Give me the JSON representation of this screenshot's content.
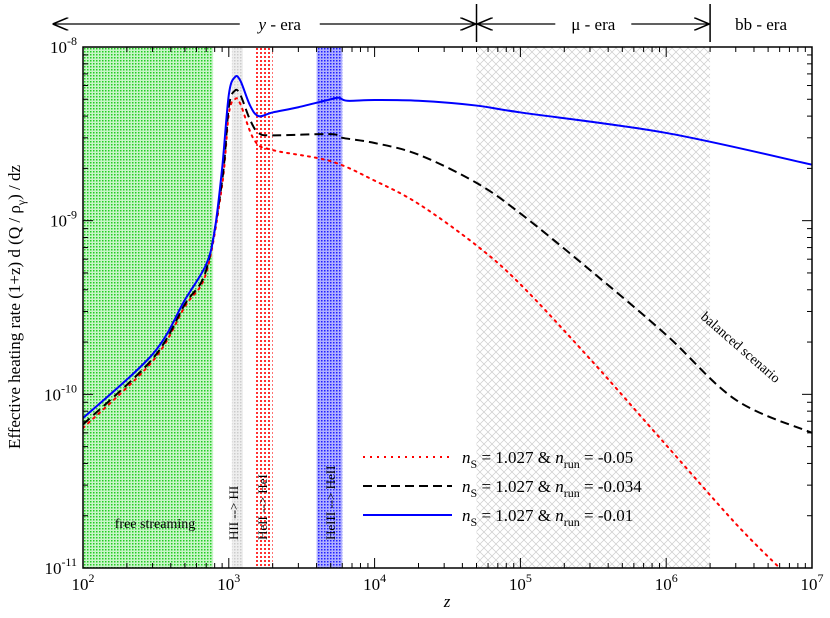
{
  "chart_data": {
    "type": "line",
    "title": "",
    "xlabel": "z",
    "ylabel": "Effective heating rate  (1+z) d (Q / ρ_γ) / dz",
    "ylabel_parts": {
      "main": "Effective heating rate  (1+z) d (Q / ρ",
      "sub": "γ",
      "end": ") / dz"
    },
    "xscale": "log",
    "yscale": "log",
    "xlim": [
      100,
      10000000
    ],
    "ylim": [
      1e-11,
      1e-08
    ],
    "x_ticks": [
      {
        "base": "10",
        "exp": "2"
      },
      {
        "base": "10",
        "exp": "3"
      },
      {
        "base": "10",
        "exp": "4"
      },
      {
        "base": "10",
        "exp": "5"
      },
      {
        "base": "10",
        "exp": "6"
      },
      {
        "base": "10",
        "exp": "7"
      }
    ],
    "y_ticks": [
      {
        "base": "10",
        "exp": "-11"
      },
      {
        "base": "10",
        "exp": "-10"
      },
      {
        "base": "10",
        "exp": "-9"
      },
      {
        "base": "10",
        "exp": "-8"
      }
    ],
    "grid": false,
    "legend_position": "bottom-center",
    "eras": [
      {
        "label": "y - era",
        "from": 100,
        "to": 50000
      },
      {
        "label": "μ - era",
        "from": 50000,
        "to": 2000000
      },
      {
        "label": "bb - era",
        "from": 2000000,
        "to": 10000000
      }
    ],
    "bands": [
      {
        "label": "free streaming",
        "from": 100,
        "to": 780,
        "color": "#22cc22"
      },
      {
        "label": "HII --> HI",
        "from": 1050,
        "to": 1250,
        "color": "#bbbbbb"
      },
      {
        "label": "HeII --> HeI",
        "from": 1500,
        "to": 2000,
        "color": "#ff0000"
      },
      {
        "label": "HeIII --> HeII",
        "from": 4000,
        "to": 6000,
        "color": "#0000ff"
      },
      {
        "label": "",
        "from": 50000,
        "to": 2000000,
        "color": "#aaaaaa"
      }
    ],
    "annotation": "balanced scenario",
    "series": [
      {
        "name": "n_S = 1.027 & n_run = -0.05",
        "legend": {
          "a": "n",
          "asub": "S",
          "b": " = 1.027 & ",
          "c": "n",
          "csub": "run",
          "d": " = -0.05"
        },
        "color": "#ff0000",
        "style": "dotted",
        "x": [
          100,
          300,
          500,
          700,
          900,
          1000,
          1100,
          1200,
          1500,
          2000,
          5000,
          10000,
          20000,
          50000,
          100000,
          300000,
          1000000,
          3000000,
          6000000
        ],
        "y": [
          6.4e-11,
          1.55e-10,
          3.2e-10,
          5e-10,
          1.6e-09,
          4.1e-09,
          5e-09,
          4.7e-09,
          2.9e-09,
          2.55e-09,
          2.2e-09,
          1.7e-09,
          1.25e-09,
          7.2e-10,
          4.3e-10,
          1.6e-10,
          5.1e-11,
          1.8e-11,
          1e-11
        ]
      },
      {
        "name": "n_S = 1.027 & n_run = -0.034",
        "legend": {
          "a": "n",
          "asub": "S",
          "b": " = 1.027 & ",
          "c": "n",
          "csub": "run",
          "d": " = -0.034"
        },
        "color": "#000000",
        "style": "dashed",
        "x": [
          100,
          300,
          500,
          700,
          900,
          1000,
          1100,
          1200,
          1400,
          1600,
          2000,
          5000,
          6000,
          10000,
          20000,
          50000,
          100000,
          300000,
          1000000,
          3000000,
          10000000
        ],
        "y": [
          6.7e-11,
          1.6e-10,
          3.3e-10,
          5.2e-10,
          1.7e-09,
          4.5e-09,
          5.6e-09,
          5.3e-09,
          3.8e-09,
          3.2e-09,
          3.1e-09,
          3.15e-09,
          3e-09,
          2.8e-09,
          2.4e-09,
          1.65e-09,
          1.1e-09,
          5.2e-10,
          2.2e-10,
          9.3e-11,
          6e-11
        ]
      },
      {
        "name": "n_S = 1.027 & n_run = -0.01",
        "legend": {
          "a": "n",
          "asub": "S",
          "b": " = 1.027 & ",
          "c": "n",
          "csub": "run",
          "d": " = -0.01"
        },
        "color": "#0000ff",
        "style": "solid",
        "x": [
          100,
          300,
          500,
          700,
          800,
          900,
          1000,
          1100,
          1200,
          1400,
          1600,
          2000,
          3000,
          5000,
          5700,
          6500,
          10000,
          20000,
          50000,
          100000,
          1000000,
          10000000
        ],
        "y": [
          7.3e-11,
          1.7e-10,
          3.5e-10,
          5.6e-10,
          8.8e-10,
          2e-09,
          5.3e-09,
          6.7e-09,
          6.4e-09,
          4.6e-09,
          4e-09,
          4.2e-09,
          4.5e-09,
          5e-09,
          5.1e-09,
          4.9e-09,
          4.95e-09,
          4.9e-09,
          4.6e-09,
          4.2e-09,
          3.2e-09,
          2.1e-09
        ]
      }
    ]
  }
}
